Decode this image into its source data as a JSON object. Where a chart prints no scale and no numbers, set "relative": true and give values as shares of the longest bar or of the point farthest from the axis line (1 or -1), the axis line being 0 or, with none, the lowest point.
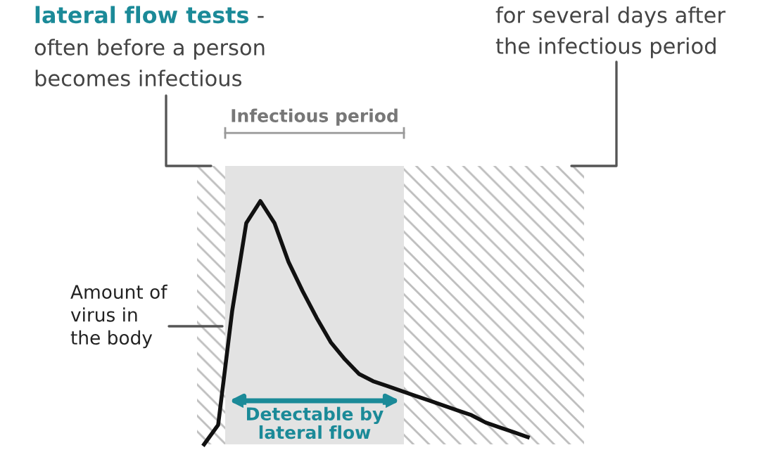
{
  "chart_data": {
    "type": "line",
    "relative": true,
    "marker": "none",
    "line_style": "solid",
    "categories": [
      null,
      null,
      null,
      null,
      null,
      null,
      null,
      null,
      null,
      null,
      null,
      null,
      null,
      null,
      null,
      null,
      null,
      null,
      null,
      null,
      null,
      null,
      null,
      null
    ],
    "series": [
      {
        "color": "#111111",
        "values": [
          0,
          0.08,
          0.55,
          0.91,
          1,
          0.91,
          0.75,
          0.63,
          0.52,
          0.42,
          0.35,
          0.29,
          0.26,
          0.24,
          0.22,
          0.2,
          0.18,
          0.16,
          0.14,
          0.12,
          0.09,
          0.07,
          0.05,
          0.03
        ]
      }
    ],
    "annotations": [
      "Infectious period",
      "lateral flow tests",
      " -",
      "often before a person",
      "becomes infectious",
      "for several days after",
      "the infectious period",
      "Amount of\nvirus in\nthe body",
      "Detectable by\nlateral flow"
    ]
  }
}
